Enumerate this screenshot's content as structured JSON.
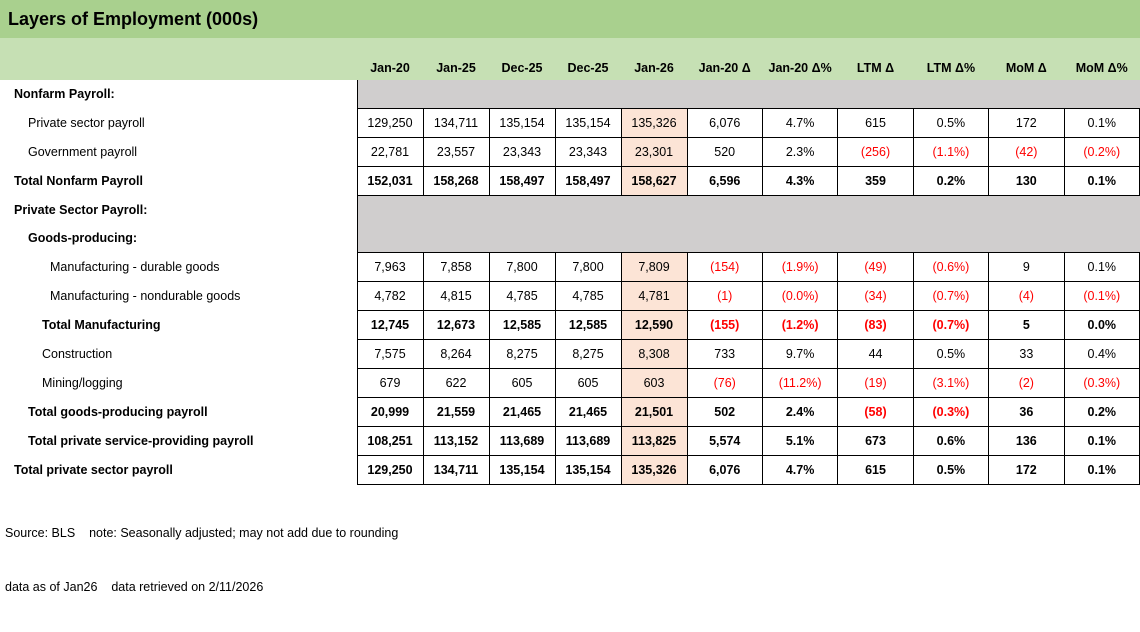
{
  "title": "Layers of Employment (000s)",
  "columns": [
    "Jan-20",
    "Jan-25",
    "Dec-25",
    "Dec-25",
    "Jan-26",
    "Jan-20 Δ",
    "Jan-20 Δ%",
    "LTM Δ",
    "LTM Δ%",
    "MoM Δ",
    "MoM Δ%"
  ],
  "highlight_column": "Jan-26",
  "highlight_col_index": 4,
  "rows": [
    {
      "label": "Nonfarm Payroll:",
      "type": "section",
      "indent": 1,
      "bold": true
    },
    {
      "label": "Private sector payroll",
      "type": "data",
      "indent": 2,
      "bold": false,
      "values": [
        "129,250",
        "134,711",
        "135,154",
        "135,154",
        "135,326",
        "6,076",
        "4.7%",
        "615",
        "0.5%",
        "172",
        "0.1%"
      ]
    },
    {
      "label": "Government payroll",
      "type": "data",
      "indent": 2,
      "bold": false,
      "values": [
        "22,781",
        "23,557",
        "23,343",
        "23,343",
        "23,301",
        "520",
        "2.3%",
        "(256)",
        "(1.1%)",
        "(42)",
        "(0.2%)"
      ]
    },
    {
      "label": "Total Nonfarm Payroll",
      "type": "data",
      "indent": 1,
      "bold": true,
      "values": [
        "152,031",
        "158,268",
        "158,497",
        "158,497",
        "158,627",
        "6,596",
        "4.3%",
        "359",
        "0.2%",
        "130",
        "0.1%"
      ]
    },
    {
      "label": "Private Sector Payroll:",
      "type": "section",
      "indent": 1,
      "bold": true
    },
    {
      "label": "Goods-producing:",
      "type": "section",
      "indent": 2,
      "bold": true
    },
    {
      "label": "Manufacturing - durable goods",
      "type": "data",
      "indent": 4,
      "bold": false,
      "values": [
        "7,963",
        "7,858",
        "7,800",
        "7,800",
        "7,809",
        "(154)",
        "(1.9%)",
        "(49)",
        "(0.6%)",
        "9",
        "0.1%"
      ]
    },
    {
      "label": "Manufacturing - nondurable goods",
      "type": "data",
      "indent": 4,
      "bold": false,
      "values": [
        "4,782",
        "4,815",
        "4,785",
        "4,785",
        "4,781",
        "(1)",
        "(0.0%)",
        "(34)",
        "(0.7%)",
        "(4)",
        "(0.1%)"
      ]
    },
    {
      "label": "Total Manufacturing",
      "type": "data",
      "indent": 3,
      "bold": true,
      "values": [
        "12,745",
        "12,673",
        "12,585",
        "12,585",
        "12,590",
        "(155)",
        "(1.2%)",
        "(83)",
        "(0.7%)",
        "5",
        "0.0%"
      ]
    },
    {
      "label": "Construction",
      "type": "data",
      "indent": 3,
      "bold": false,
      "values": [
        "7,575",
        "8,264",
        "8,275",
        "8,275",
        "8,308",
        "733",
        "9.7%",
        "44",
        "0.5%",
        "33",
        "0.4%"
      ]
    },
    {
      "label": "Mining/logging",
      "type": "data",
      "indent": 3,
      "bold": false,
      "values": [
        "679",
        "622",
        "605",
        "605",
        "603",
        "(76)",
        "(11.2%)",
        "(19)",
        "(3.1%)",
        "(2)",
        "(0.3%)"
      ]
    },
    {
      "label": "Total goods-producing payroll",
      "type": "data",
      "indent": 2,
      "bold": true,
      "values": [
        "20,999",
        "21,559",
        "21,465",
        "21,465",
        "21,501",
        "502",
        "2.4%",
        "(58)",
        "(0.3%)",
        "36",
        "0.2%"
      ]
    },
    {
      "label": "Total private service-providing payroll",
      "type": "data",
      "indent": 2,
      "bold": true,
      "values": [
        "108,251",
        "113,152",
        "113,689",
        "113,689",
        "113,825",
        "5,574",
        "5.1%",
        "673",
        "0.6%",
        "136",
        "0.1%"
      ]
    },
    {
      "label": "Total private sector payroll",
      "type": "data",
      "indent": 1,
      "bold": true,
      "values": [
        "129,250",
        "134,711",
        "135,154",
        "135,154",
        "135,326",
        "6,076",
        "4.7%",
        "615",
        "0.5%",
        "172",
        "0.1%"
      ]
    }
  ],
  "footer": {
    "line1": "Source: BLS    note: Seasonally adjusted; may not add due to rounding",
    "line2": "data as of Jan26    data retrieved on 2/11/2026"
  },
  "colors": {
    "title_bar": "#A9D08E",
    "header_band": "#C6E0B4",
    "section_fill": "#D0CECE",
    "highlight_fill": "#FCE4D6",
    "negative": "#FF0000"
  }
}
